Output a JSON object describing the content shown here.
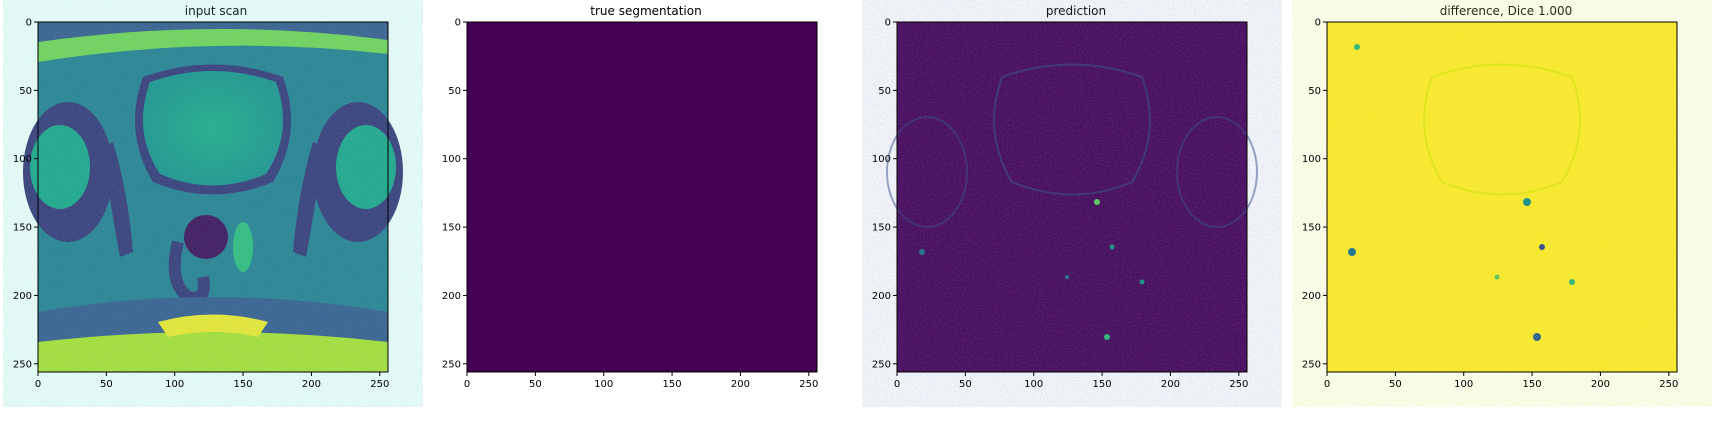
{
  "figure": {
    "panels": [
      {
        "title": "input scan",
        "image": "axial-mri-slice",
        "colormap": "viridis"
      },
      {
        "title": "true segmentation",
        "image": "empty-mask",
        "colormap": "viridis"
      },
      {
        "title": "prediction",
        "image": "faint-prediction-map",
        "colormap": "viridis"
      },
      {
        "title": "difference, Dice 1.000",
        "image": "difference-map",
        "colormap": "viridis"
      }
    ],
    "axes": {
      "x_ticks": [
        "0",
        "50",
        "100",
        "150",
        "200",
        "250"
      ],
      "y_ticks": [
        "0",
        "50",
        "100",
        "150",
        "200",
        "250"
      ],
      "tick_values": [
        0,
        50,
        100,
        150,
        200,
        250
      ],
      "range": [
        0,
        256
      ]
    },
    "colors": {
      "viridis_low": "#440154",
      "viridis_mid": "#21918c",
      "viridis_high": "#fde725"
    }
  }
}
